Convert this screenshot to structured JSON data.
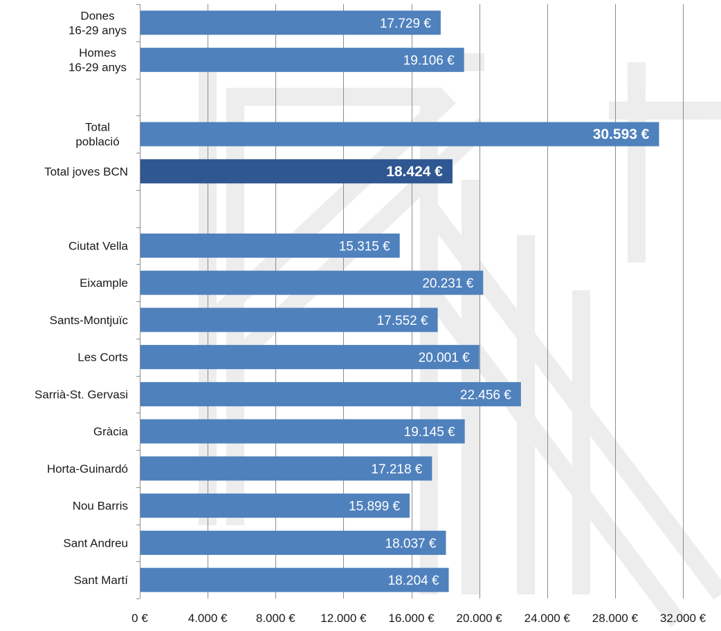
{
  "chart_data": {
    "type": "bar",
    "orientation": "horizontal",
    "title": "",
    "xlabel": "",
    "ylabel": "",
    "xlim": [
      0,
      32000
    ],
    "x_ticks": [
      0,
      4000,
      8000,
      12000,
      16000,
      20000,
      24000,
      28000,
      32000
    ],
    "x_tick_labels": [
      "0 €",
      "4.000 €",
      "8.000 €",
      "12.000 €",
      "16.000 €",
      "20.000 €",
      "24.000 €",
      "28.000 €",
      "32.000 €"
    ],
    "grid": "vertical",
    "legend": "none",
    "slot_count": 16,
    "bars": [
      {
        "slot": 0,
        "label": [
          "Dones",
          "16-29 anys"
        ],
        "value": 17729,
        "value_label": "17.729 €",
        "color": "#4f81bd",
        "bold": false
      },
      {
        "slot": 1,
        "label": [
          "Homes",
          "16-29 anys"
        ],
        "value": 19106,
        "value_label": "19.106 €",
        "color": "#4f81bd",
        "bold": false
      },
      {
        "slot": 3,
        "label": [
          "Total",
          "població"
        ],
        "value": 30593,
        "value_label": "30.593 €",
        "color": "#4f81bd",
        "bold": true
      },
      {
        "slot": 4,
        "label": [
          "Total joves BCN"
        ],
        "value": 18424,
        "value_label": "18.424 €",
        "color": "#2f5791",
        "bold": true
      },
      {
        "slot": 6,
        "label": [
          "Ciutat Vella"
        ],
        "value": 15315,
        "value_label": "15.315 €",
        "color": "#4f81bd",
        "bold": false
      },
      {
        "slot": 7,
        "label": [
          "Eixample"
        ],
        "value": 20231,
        "value_label": "20.231 €",
        "color": "#4f81bd",
        "bold": false
      },
      {
        "slot": 8,
        "label": [
          "Sants-Montjuïc"
        ],
        "value": 17552,
        "value_label": "17.552 €",
        "color": "#4f81bd",
        "bold": false
      },
      {
        "slot": 9,
        "label": [
          "Les Corts"
        ],
        "value": 20001,
        "value_label": "20.001 €",
        "color": "#4f81bd",
        "bold": false
      },
      {
        "slot": 10,
        "label": [
          "Sarrià-St. Gervasi"
        ],
        "value": 22456,
        "value_label": "22.456 €",
        "color": "#4f81bd",
        "bold": false
      },
      {
        "slot": 11,
        "label": [
          "Gràcia"
        ],
        "value": 19145,
        "value_label": "19.145 €",
        "color": "#4f81bd",
        "bold": false
      },
      {
        "slot": 12,
        "label": [
          "Horta-Guinardó"
        ],
        "value": 17218,
        "value_label": "17.218 €",
        "color": "#4f81bd",
        "bold": false
      },
      {
        "slot": 13,
        "label": [
          "Nou Barris"
        ],
        "value": 15899,
        "value_label": "15.899 €",
        "color": "#4f81bd",
        "bold": false
      },
      {
        "slot": 14,
        "label": [
          "Sant Andreu"
        ],
        "value": 18037,
        "value_label": "18.037 €",
        "color": "#4f81bd",
        "bold": false
      },
      {
        "slot": 15,
        "label": [
          "Sant Martí"
        ],
        "value": 18204,
        "value_label": "18.204 €",
        "color": "#4f81bd",
        "bold": false
      }
    ]
  }
}
